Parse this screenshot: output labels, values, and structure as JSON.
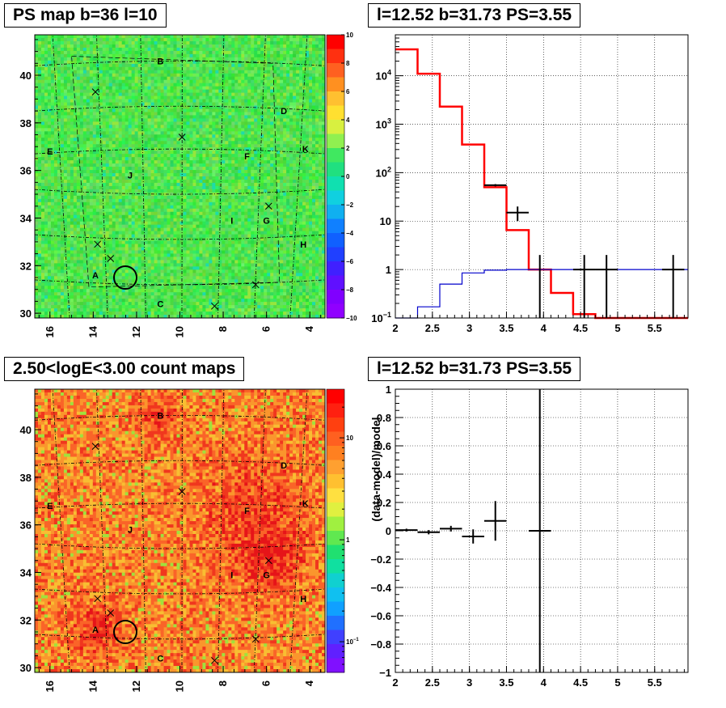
{
  "panels": {
    "ps_map": {
      "title": "PS map b=36 l=10",
      "colorbar": {
        "ticks": [
          "10",
          "8",
          "6",
          "4",
          "2",
          "0",
          "−2",
          "−4",
          "−6",
          "−8",
          "−10"
        ]
      }
    },
    "count_map": {
      "title": "2.50<logE<3.00 count maps",
      "colorbar": {
        "ticks": [
          {
            "label": "10",
            "sup": ""
          },
          {
            "label": "1",
            "sup": ""
          },
          {
            "label": "10",
            "sup": "−1"
          }
        ]
      }
    },
    "spectrum": {
      "title": "l=12.52 b=31.73 PS=3.55"
    },
    "residual": {
      "title": "l=12.52 b=31.73 PS=3.55",
      "ylabel": "(data-model)/model"
    }
  },
  "map_axes": {
    "x_ticks": [
      "16",
      "14",
      "12",
      "10",
      "8",
      "6",
      "4"
    ],
    "y_ticks": [
      "40",
      "38",
      "36",
      "34",
      "32",
      "30"
    ]
  },
  "map_labels": [
    {
      "text": "B",
      "x": 10.9,
      "y": 40.6
    },
    {
      "text": "D",
      "x": 5.2,
      "y": 38.5
    },
    {
      "text": "E",
      "x": 16.0,
      "y": 36.8
    },
    {
      "text": "F",
      "x": 6.9,
      "y": 36.6
    },
    {
      "text": "K",
      "x": 4.2,
      "y": 36.9
    },
    {
      "text": "J",
      "x": 12.3,
      "y": 35.8
    },
    {
      "text": "I",
      "x": 7.6,
      "y": 33.9
    },
    {
      "text": "G",
      "x": 6.0,
      "y": 33.9
    },
    {
      "text": "H",
      "x": 4.3,
      "y": 32.9
    },
    {
      "text": "A",
      "x": 13.9,
      "y": 31.6
    },
    {
      "text": "C",
      "x": 10.9,
      "y": 30.4
    }
  ],
  "map_crosses": [
    {
      "x": 13.9,
      "y": 39.3
    },
    {
      "x": 9.9,
      "y": 37.4
    },
    {
      "x": 5.9,
      "y": 34.5
    },
    {
      "x": 13.8,
      "y": 32.9
    },
    {
      "x": 13.2,
      "y": 32.3
    },
    {
      "x": 6.5,
      "y": 31.2
    },
    {
      "x": 8.4,
      "y": 30.3
    }
  ],
  "map_source_circle": {
    "x": 12.52,
    "y": 31.5
  },
  "chart_data": [
    {
      "type": "heatmap",
      "title": "PS map b=36 l=10",
      "xlim": [
        16.7,
        3.3
      ],
      "ylim": [
        29.8,
        41.7
      ],
      "zlim": [
        -10,
        10
      ],
      "note": "significance map, mostly ~0 (green) everywhere"
    },
    {
      "type": "heatmap",
      "title": "2.50<logE<3.00 count maps",
      "xlim": [
        16.7,
        3.3
      ],
      "ylim": [
        29.8,
        41.7
      ],
      "zscale": "log",
      "zlim": [
        0.05,
        30
      ]
    },
    {
      "type": "line",
      "title": "l=12.52 b=31.73 PS=3.55",
      "xlim": [
        2,
        5.95
      ],
      "ylim": [
        0.1,
        70000
      ],
      "yscale": "log",
      "x_ticks": [
        "2",
        "2.5",
        "3",
        "3.5",
        "4",
        "4.5",
        "5",
        "5.5"
      ],
      "y_ticks": [
        {
          "v": 0.1,
          "label": "10",
          "sup": "−1"
        },
        {
          "v": 1,
          "label": "1",
          "sup": ""
        },
        {
          "v": 10,
          "label": "10",
          "sup": ""
        },
        {
          "v": 100,
          "label": "10",
          "sup": "2"
        },
        {
          "v": 1000,
          "label": "10",
          "sup": "3"
        },
        {
          "v": 10000,
          "label": "10",
          "sup": "4"
        }
      ],
      "series": [
        {
          "color": "#ff0000",
          "edges": [
            2,
            2.3,
            2.6,
            2.9,
            3.2,
            3.5,
            3.8,
            4.1,
            4.4,
            4.7,
            5.0,
            5.3,
            5.95
          ],
          "values": [
            35000,
            11000,
            2300,
            380,
            50,
            6.5,
            1.0,
            0.33,
            0.12,
            0.1,
            0.1,
            0.1
          ]
        },
        {
          "color": "#0000cc",
          "edges": [
            2,
            2.3,
            2.6,
            2.9,
            3.2,
            3.5,
            3.8,
            4.1,
            4.4,
            4.7,
            5.0,
            5.3,
            5.95
          ],
          "values": [
            0.1,
            0.17,
            0.5,
            0.85,
            0.97,
            1.0,
            1.0,
            1.0,
            1.0,
            1.0,
            1.0,
            1.0
          ]
        }
      ],
      "points": [
        {
          "x": 3.35,
          "y": 55,
          "xerr": 0.15,
          "ylo": 52,
          "yhi": 58
        },
        {
          "x": 3.65,
          "y": 15,
          "xerr": 0.15,
          "ylo": 10,
          "yhi": 20
        },
        {
          "x": 3.95,
          "y": 0.1,
          "xerr": 0.0,
          "ylo": 0.1,
          "yhi": 2.0
        },
        {
          "x": 4.55,
          "y": 1.0,
          "xerr": 0.15,
          "ylo": 0.1,
          "yhi": 2.0
        },
        {
          "x": 4.85,
          "y": 1.0,
          "xerr": 0.15,
          "ylo": 0.1,
          "yhi": 2.0
        },
        {
          "x": 5.75,
          "y": 1.0,
          "xerr": 0.15,
          "ylo": 0.1,
          "yhi": 2.0
        }
      ]
    },
    {
      "type": "scatter",
      "title": "l=12.52 b=31.73 PS=3.55",
      "ylabel": "(data-model)/model",
      "xlim": [
        2,
        5.95
      ],
      "ylim": [
        -1,
        1
      ],
      "x_ticks": [
        "2",
        "2.5",
        "3",
        "3.5",
        "4",
        "4.5",
        "5",
        "5.5"
      ],
      "y_ticks": [
        "1",
        "0.8",
        "0.6",
        "0.4",
        "0.2",
        "0",
        "−0.2",
        "−0.4",
        "−0.6",
        "−0.8",
        "−1"
      ],
      "points": [
        {
          "x": 2.15,
          "y": 0.005,
          "xerr": 0.15,
          "yerr": 0.01
        },
        {
          "x": 2.45,
          "y": -0.01,
          "xerr": 0.15,
          "yerr": 0.015
        },
        {
          "x": 2.75,
          "y": 0.015,
          "xerr": 0.15,
          "yerr": 0.02
        },
        {
          "x": 3.05,
          "y": -0.04,
          "xerr": 0.15,
          "yerr": 0.05
        },
        {
          "x": 3.35,
          "y": 0.07,
          "xerr": 0.15,
          "yerr": 0.14
        },
        {
          "x": 3.95,
          "y": 0.0,
          "xerr": 0.15,
          "yerr": 1.3
        }
      ]
    }
  ]
}
